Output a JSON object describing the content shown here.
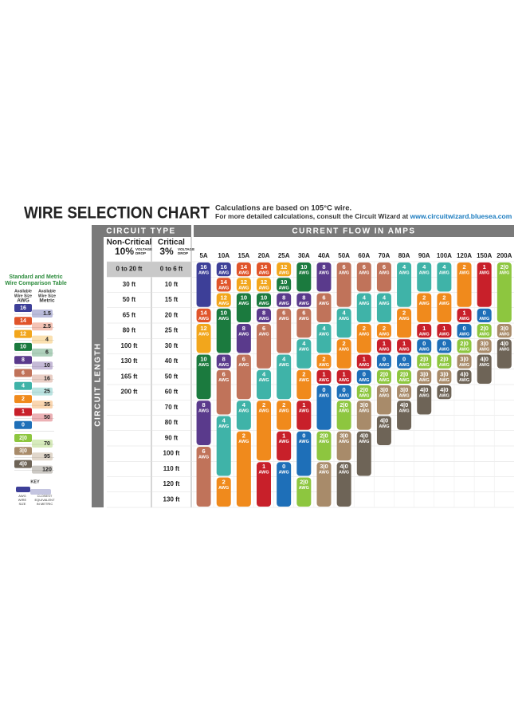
{
  "header": {
    "title": "WIRE SELECTION CHART",
    "note_line1": "Calculations are based on 105°C wire.",
    "note_line2": "For more detailed calculations, consult the Circuit Wizard at",
    "url": "www.circuitwizard.bluesea.com"
  },
  "comparison_table": {
    "title_lines": [
      "Standard and Metric",
      "Wire Comparison Table"
    ],
    "awg_header": [
      "Available",
      "Wire Size",
      "AWG"
    ],
    "metric_header": [
      "Available",
      "Wire Size",
      "Metric"
    ],
    "awg": [
      "16",
      "14",
      "12",
      "10",
      "8",
      "6",
      "4",
      "2",
      "1",
      "0",
      "2|0",
      "3|0",
      "4|0"
    ],
    "metric": [
      "1.5",
      "2.5",
      "4",
      "6",
      "10",
      "16",
      "25",
      "35",
      "50",
      "70",
      "95",
      "120"
    ],
    "key_label": "KEY",
    "key_awg": [
      "AWG",
      "WIRE",
      "SIZE"
    ],
    "key_metric": [
      "CLOSEST",
      "EQUIVALENT",
      "IN METRIC"
    ]
  },
  "chart": {
    "circuit_type_header": "CIRCUIT TYPE",
    "current_header": "CURRENT FLOW IN AMPS",
    "circuit_length_label": "CIRCUIT LENGTH",
    "non_critical": {
      "name": "Non-Critical",
      "percent": "10%",
      "drop": [
        "VOLTAGE",
        "DROP"
      ],
      "lengths": [
        "0 to 20 ft",
        "30 ft",
        "50 ft",
        "65 ft",
        "80 ft",
        "100 ft",
        "130 ft",
        "165 ft",
        "200 ft"
      ]
    },
    "critical": {
      "name": "Critical",
      "percent": "3%",
      "drop": [
        "VOLTAGE",
        "DROP"
      ],
      "lengths": [
        "0 to 6 ft",
        "10 ft",
        "15 ft",
        "20 ft",
        "25 ft",
        "30 ft",
        "40 ft",
        "50 ft",
        "60 ft",
        "70 ft",
        "80 ft",
        "90 ft",
        "100 ft",
        "110 ft",
        "120 ft",
        "130 ft"
      ]
    },
    "amps": [
      "5A",
      "10A",
      "15A",
      "20A",
      "25A",
      "30A",
      "40A",
      "50A",
      "60A",
      "70A",
      "80A",
      "90A",
      "100A",
      "120A",
      "150A",
      "200A"
    ],
    "wire_colors": {
      "16": "#3d3f98",
      "14": "#e0542a",
      "12": "#f2a61c",
      "10": "#1b7a3e",
      "8": "#5a3a8c",
      "6": "#c0735a",
      "4": "#3fb3a8",
      "2": "#f08a1c",
      "1": "#c8202a",
      "0": "#1e6fb8",
      "2|0": "#8dc63f",
      "3|0": "#a88b6a",
      "4|0": "#6e6457"
    },
    "columns": [
      [
        {
          "size": "16",
          "unit": "AWG",
          "rows": [
            0,
            2
          ]
        },
        {
          "size": "14",
          "unit": "AWG",
          "rows": [
            3,
            3
          ]
        },
        {
          "size": "12",
          "unit": "AWG",
          "rows": [
            4,
            5
          ]
        },
        {
          "size": "10",
          "unit": "AWG",
          "rows": [
            6,
            8
          ]
        },
        {
          "size": "8",
          "unit": "AWG",
          "rows": [
            9,
            11
          ]
        },
        {
          "size": "6",
          "unit": "AWG",
          "rows": [
            12,
            15
          ]
        }
      ],
      [
        {
          "size": "16",
          "unit": "AWG",
          "rows": [
            0,
            0
          ]
        },
        {
          "size": "14",
          "unit": "AWG",
          "rows": [
            1,
            1
          ]
        },
        {
          "size": "12",
          "unit": "AWG",
          "rows": [
            2,
            2
          ]
        },
        {
          "size": "10",
          "unit": "AWG",
          "rows": [
            3,
            5
          ]
        },
        {
          "size": "8",
          "unit": "AWG",
          "rows": [
            6,
            6
          ]
        },
        {
          "size": "6",
          "unit": "AWG",
          "rows": [
            7,
            9
          ]
        },
        {
          "size": "4",
          "unit": "AWG",
          "rows": [
            10,
            13
          ]
        },
        {
          "size": "2",
          "unit": "AWG",
          "rows": [
            14,
            15
          ]
        }
      ],
      [
        {
          "size": "14",
          "unit": "AWG",
          "rows": [
            0,
            0
          ]
        },
        {
          "size": "12",
          "unit": "AWG",
          "rows": [
            1,
            1
          ]
        },
        {
          "size": "10",
          "unit": "AWG",
          "rows": [
            2,
            3
          ]
        },
        {
          "size": "8",
          "unit": "AWG",
          "rows": [
            4,
            5
          ]
        },
        {
          "size": "6",
          "unit": "AWG",
          "rows": [
            6,
            8
          ]
        },
        {
          "size": "4",
          "unit": "AWG",
          "rows": [
            9,
            10
          ]
        },
        {
          "size": "2",
          "unit": "AWG",
          "rows": [
            11,
            15
          ]
        }
      ],
      [
        {
          "size": "14",
          "unit": "AWG",
          "rows": [
            0,
            0
          ]
        },
        {
          "size": "12",
          "unit": "AWG",
          "rows": [
            1,
            1
          ]
        },
        {
          "size": "10",
          "unit": "AWG",
          "rows": [
            2,
            2
          ]
        },
        {
          "size": "8",
          "unit": "AWG",
          "rows": [
            3,
            3
          ]
        },
        {
          "size": "6",
          "unit": "AWG",
          "rows": [
            4,
            6
          ]
        },
        {
          "size": "4",
          "unit": "AWG",
          "rows": [
            7,
            8
          ]
        },
        {
          "size": "2",
          "unit": "AWG",
          "rows": [
            9,
            12
          ]
        },
        {
          "size": "1",
          "unit": "AWG",
          "rows": [
            13,
            15
          ]
        }
      ],
      [
        {
          "size": "12",
          "unit": "AWG",
          "rows": [
            0,
            0
          ]
        },
        {
          "size": "10",
          "unit": "AWG",
          "rows": [
            1,
            1
          ]
        },
        {
          "size": "8",
          "unit": "AWG",
          "rows": [
            2,
            2
          ]
        },
        {
          "size": "6",
          "unit": "AWG",
          "rows": [
            3,
            5
          ]
        },
        {
          "size": "4",
          "unit": "AWG",
          "rows": [
            6,
            8
          ]
        },
        {
          "size": "2",
          "unit": "AWG",
          "rows": [
            9,
            10
          ]
        },
        {
          "size": "1",
          "unit": "AWG",
          "rows": [
            11,
            12
          ]
        },
        {
          "size": "0",
          "unit": "AWG",
          "rows": [
            13,
            15
          ]
        }
      ],
      [
        {
          "size": "10",
          "unit": "AWG",
          "rows": [
            0,
            1
          ]
        },
        {
          "size": "8",
          "unit": "AWG",
          "rows": [
            2,
            2
          ]
        },
        {
          "size": "6",
          "unit": "AWG",
          "rows": [
            3,
            4
          ]
        },
        {
          "size": "4",
          "unit": "AWG",
          "rows": [
            5,
            6
          ]
        },
        {
          "size": "2",
          "unit": "AWG",
          "rows": [
            7,
            8
          ]
        },
        {
          "size": "1",
          "unit": "AWG",
          "rows": [
            9,
            10
          ]
        },
        {
          "size": "0",
          "unit": "AWG",
          "rows": [
            11,
            13
          ]
        },
        {
          "size": "2|0",
          "unit": "AWG",
          "rows": [
            14,
            15
          ]
        }
      ],
      [
        {
          "size": "8",
          "unit": "AWG",
          "rows": [
            0,
            1
          ]
        },
        {
          "size": "6",
          "unit": "AWG",
          "rows": [
            2,
            3
          ]
        },
        {
          "size": "4",
          "unit": "AWG",
          "rows": [
            4,
            5
          ]
        },
        {
          "size": "2",
          "unit": "AWG",
          "rows": [
            6,
            6
          ]
        },
        {
          "size": "1",
          "unit": "AWG",
          "rows": [
            7,
            7
          ]
        },
        {
          "size": "0",
          "unit": "AWG",
          "rows": [
            8,
            10
          ]
        },
        {
          "size": "2|0",
          "unit": "AWG",
          "rows": [
            11,
            12
          ]
        },
        {
          "size": "3|0",
          "unit": "AWG",
          "rows": [
            13,
            15
          ]
        }
      ],
      [
        {
          "size": "6",
          "unit": "AWG",
          "rows": [
            0,
            2
          ]
        },
        {
          "size": "4",
          "unit": "AWG",
          "rows": [
            3,
            4
          ]
        },
        {
          "size": "2",
          "unit": "AWG",
          "rows": [
            5,
            6
          ]
        },
        {
          "size": "1",
          "unit": "AWG",
          "rows": [
            7,
            7
          ]
        },
        {
          "size": "0",
          "unit": "AWG",
          "rows": [
            8,
            8
          ]
        },
        {
          "size": "2|0",
          "unit": "AWG",
          "rows": [
            9,
            10
          ]
        },
        {
          "size": "3|0",
          "unit": "AWG",
          "rows": [
            11,
            12
          ]
        },
        {
          "size": "4|0",
          "unit": "AWG",
          "rows": [
            13,
            15
          ]
        }
      ],
      [
        {
          "size": "6",
          "unit": "AWG",
          "rows": [
            0,
            1
          ]
        },
        {
          "size": "4",
          "unit": "AWG",
          "rows": [
            2,
            3
          ]
        },
        {
          "size": "2",
          "unit": "AWG",
          "rows": [
            4,
            5
          ]
        },
        {
          "size": "1",
          "unit": "AWG",
          "rows": [
            6,
            6
          ]
        },
        {
          "size": "0",
          "unit": "AWG",
          "rows": [
            7,
            7
          ]
        },
        {
          "size": "2|0",
          "unit": "AWG",
          "rows": [
            8,
            8
          ]
        },
        {
          "size": "3|0",
          "unit": "AWG",
          "rows": [
            9,
            10
          ]
        },
        {
          "size": "4|0",
          "unit": "AWG",
          "rows": [
            11,
            13
          ]
        }
      ],
      [
        {
          "size": "6",
          "unit": "AWG",
          "rows": [
            0,
            1
          ]
        },
        {
          "size": "4",
          "unit": "AWG",
          "rows": [
            2,
            3
          ]
        },
        {
          "size": "2",
          "unit": "AWG",
          "rows": [
            4,
            4
          ]
        },
        {
          "size": "1",
          "unit": "AWG",
          "rows": [
            5,
            5
          ]
        },
        {
          "size": "0",
          "unit": "AWG",
          "rows": [
            6,
            6
          ]
        },
        {
          "size": "2|0",
          "unit": "AWG",
          "rows": [
            7,
            7
          ]
        },
        {
          "size": "3|0",
          "unit": "AWG",
          "rows": [
            8,
            9
          ]
        },
        {
          "size": "4|0",
          "unit": "AWG",
          "rows": [
            10,
            11
          ]
        }
      ],
      [
        {
          "size": "4",
          "unit": "AWG",
          "rows": [
            0,
            2
          ]
        },
        {
          "size": "2",
          "unit": "AWG",
          "rows": [
            3,
            4
          ]
        },
        {
          "size": "1",
          "unit": "AWG",
          "rows": [
            5,
            5
          ]
        },
        {
          "size": "0",
          "unit": "AWG",
          "rows": [
            6,
            6
          ]
        },
        {
          "size": "2|0",
          "unit": "AWG",
          "rows": [
            7,
            7
          ]
        },
        {
          "size": "3|0",
          "unit": "AWG",
          "rows": [
            8,
            8
          ]
        },
        {
          "size": "4|0",
          "unit": "AWG",
          "rows": [
            9,
            10
          ]
        }
      ],
      [
        {
          "size": "4",
          "unit": "AWG",
          "rows": [
            0,
            1
          ]
        },
        {
          "size": "2",
          "unit": "AWG",
          "rows": [
            2,
            3
          ]
        },
        {
          "size": "1",
          "unit": "AWG",
          "rows": [
            4,
            4
          ]
        },
        {
          "size": "0",
          "unit": "AWG",
          "rows": [
            5,
            5
          ]
        },
        {
          "size": "2|0",
          "unit": "AWG",
          "rows": [
            6,
            6
          ]
        },
        {
          "size": "3|0",
          "unit": "AWG",
          "rows": [
            7,
            7
          ]
        },
        {
          "size": "4|0",
          "unit": "AWG",
          "rows": [
            8,
            9
          ]
        }
      ],
      [
        {
          "size": "4",
          "unit": "AWG",
          "rows": [
            0,
            1
          ]
        },
        {
          "size": "2",
          "unit": "AWG",
          "rows": [
            2,
            3
          ]
        },
        {
          "size": "1",
          "unit": "AWG",
          "rows": [
            4,
            4
          ]
        },
        {
          "size": "0",
          "unit": "AWG",
          "rows": [
            5,
            5
          ]
        },
        {
          "size": "2|0",
          "unit": "AWG",
          "rows": [
            6,
            6
          ]
        },
        {
          "size": "3|0",
          "unit": "AWG",
          "rows": [
            7,
            7
          ]
        },
        {
          "size": "4|0",
          "unit": "AWG",
          "rows": [
            8,
            8
          ]
        }
      ],
      [
        {
          "size": "2",
          "unit": "AWG",
          "rows": [
            0,
            2
          ]
        },
        {
          "size": "1",
          "unit": "AWG",
          "rows": [
            3,
            3
          ]
        },
        {
          "size": "0",
          "unit": "AWG",
          "rows": [
            4,
            4
          ]
        },
        {
          "size": "2|0",
          "unit": "AWG",
          "rows": [
            5,
            5
          ]
        },
        {
          "size": "3|0",
          "unit": "AWG",
          "rows": [
            6,
            6
          ]
        },
        {
          "size": "4|0",
          "unit": "AWG",
          "rows": [
            7,
            7
          ]
        }
      ],
      [
        {
          "size": "1",
          "unit": "AWG",
          "rows": [
            0,
            2
          ]
        },
        {
          "size": "0",
          "unit": "AWG",
          "rows": [
            3,
            3
          ]
        },
        {
          "size": "2|0",
          "unit": "AWG",
          "rows": [
            4,
            4
          ]
        },
        {
          "size": "3|0",
          "unit": "AWG",
          "rows": [
            5,
            5
          ]
        },
        {
          "size": "4|0",
          "unit": "AWG",
          "rows": [
            6,
            7
          ]
        }
      ],
      [
        {
          "size": "2|0",
          "unit": "AWG",
          "rows": [
            0,
            3
          ]
        },
        {
          "size": "3|0",
          "unit": "AWG",
          "rows": [
            4,
            4
          ]
        },
        {
          "size": "4|0",
          "unit": "AWG",
          "rows": [
            5,
            6
          ]
        }
      ]
    ]
  }
}
